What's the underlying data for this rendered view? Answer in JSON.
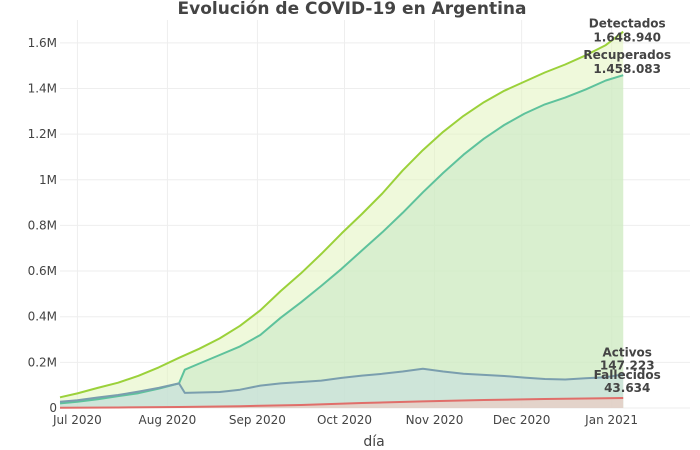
{
  "chart_data": {
    "type": "area",
    "title": "Evolución de COVID-19 en Argentina",
    "xlabel": "día",
    "ylabel": "",
    "x_start": "2020-06-25",
    "x_range": [
      "2020-06-25",
      "2021-01-28"
    ],
    "ylim": [
      0,
      1700000
    ],
    "grid": true,
    "y_ticks": [
      {
        "value": 0,
        "label": "0"
      },
      {
        "value": 200000,
        "label": "0.2M"
      },
      {
        "value": 400000,
        "label": "0.4M"
      },
      {
        "value": 600000,
        "label": "0.6M"
      },
      {
        "value": 800000,
        "label": "0.8M"
      },
      {
        "value": 1000000,
        "label": "1M"
      },
      {
        "value": 1200000,
        "label": "1.2M"
      },
      {
        "value": 1400000,
        "label": "1.4M"
      },
      {
        "value": 1600000,
        "label": "1.6M"
      }
    ],
    "x_ticks": [
      {
        "date": "2020-07-01",
        "label": "Jul 2020"
      },
      {
        "date": "2020-08-01",
        "label": "Aug 2020"
      },
      {
        "date": "2020-09-01",
        "label": "Sep 2020"
      },
      {
        "date": "2020-10-01",
        "label": "Oct 2020"
      },
      {
        "date": "2020-11-01",
        "label": "Nov 2020"
      },
      {
        "date": "2020-12-01",
        "label": "Dec 2020"
      },
      {
        "date": "2021-01-01",
        "label": "Jan 2021"
      }
    ],
    "series": [
      {
        "name": "Detectados",
        "label_value": "1.648.940",
        "color": "#9bd13a",
        "fill": "rgba(226,244,190,0.55)",
        "points": [
          [
            "2020-06-25",
            47000
          ],
          [
            "2020-07-01",
            64000
          ],
          [
            "2020-07-08",
            88000
          ],
          [
            "2020-07-15",
            111000
          ],
          [
            "2020-07-22",
            141000
          ],
          [
            "2020-07-29",
            178000
          ],
          [
            "2020-08-05",
            220000
          ],
          [
            "2020-08-12",
            260000
          ],
          [
            "2020-08-19",
            305000
          ],
          [
            "2020-08-26",
            360000
          ],
          [
            "2020-09-02",
            428000
          ],
          [
            "2020-09-09",
            512000
          ],
          [
            "2020-09-16",
            590000
          ],
          [
            "2020-09-23",
            675000
          ],
          [
            "2020-09-30",
            765000
          ],
          [
            "2020-10-07",
            850000
          ],
          [
            "2020-10-14",
            940000
          ],
          [
            "2020-10-21",
            1040000
          ],
          [
            "2020-10-28",
            1130000
          ],
          [
            "2020-11-04",
            1210000
          ],
          [
            "2020-11-11",
            1280000
          ],
          [
            "2020-11-18",
            1340000
          ],
          [
            "2020-11-25",
            1390000
          ],
          [
            "2020-12-02",
            1430000
          ],
          [
            "2020-12-09",
            1470000
          ],
          [
            "2020-12-16",
            1505000
          ],
          [
            "2020-12-23",
            1545000
          ],
          [
            "2020-12-30",
            1590000
          ],
          [
            "2021-01-05",
            1648940
          ]
        ]
      },
      {
        "name": "Recuperados",
        "label_value": "1.458.083",
        "color": "#5ec29c",
        "fill": "rgba(198,232,196,0.55)",
        "points": [
          [
            "2020-06-25",
            20000
          ],
          [
            "2020-07-01",
            27000
          ],
          [
            "2020-07-08",
            38000
          ],
          [
            "2020-07-15",
            52000
          ],
          [
            "2020-07-22",
            65000
          ],
          [
            "2020-07-29",
            85000
          ],
          [
            "2020-08-05",
            108000
          ],
          [
            "2020-08-07",
            168000
          ],
          [
            "2020-08-12",
            195000
          ],
          [
            "2020-08-19",
            232000
          ],
          [
            "2020-08-26",
            270000
          ],
          [
            "2020-09-02",
            320000
          ],
          [
            "2020-09-09",
            395000
          ],
          [
            "2020-09-16",
            463000
          ],
          [
            "2020-09-23",
            535000
          ],
          [
            "2020-09-30",
            610000
          ],
          [
            "2020-10-07",
            690000
          ],
          [
            "2020-10-14",
            770000
          ],
          [
            "2020-10-21",
            855000
          ],
          [
            "2020-10-28",
            945000
          ],
          [
            "2020-11-04",
            1030000
          ],
          [
            "2020-11-11",
            1110000
          ],
          [
            "2020-11-18",
            1180000
          ],
          [
            "2020-11-25",
            1240000
          ],
          [
            "2020-12-02",
            1290000
          ],
          [
            "2020-12-09",
            1330000
          ],
          [
            "2020-12-16",
            1360000
          ],
          [
            "2020-12-23",
            1395000
          ],
          [
            "2020-12-30",
            1435000
          ],
          [
            "2021-01-05",
            1458083
          ]
        ]
      },
      {
        "name": "Activos",
        "label_value": "147.223",
        "color": "#7a9eae",
        "fill": "rgba(196,220,226,0.55)",
        "points": [
          [
            "2020-06-25",
            27000
          ],
          [
            "2020-07-01",
            34000
          ],
          [
            "2020-07-08",
            46000
          ],
          [
            "2020-07-15",
            57000
          ],
          [
            "2020-07-22",
            72000
          ],
          [
            "2020-07-29",
            88000
          ],
          [
            "2020-08-05",
            108000
          ],
          [
            "2020-08-07",
            66000
          ],
          [
            "2020-08-12",
            68000
          ],
          [
            "2020-08-19",
            70000
          ],
          [
            "2020-08-26",
            80000
          ],
          [
            "2020-09-02",
            98000
          ],
          [
            "2020-09-09",
            108000
          ],
          [
            "2020-09-16",
            114000
          ],
          [
            "2020-09-23",
            120000
          ],
          [
            "2020-09-30",
            132000
          ],
          [
            "2020-10-07",
            142000
          ],
          [
            "2020-10-14",
            150000
          ],
          [
            "2020-10-21",
            160000
          ],
          [
            "2020-10-28",
            172000
          ],
          [
            "2020-11-04",
            160000
          ],
          [
            "2020-11-11",
            150000
          ],
          [
            "2020-11-18",
            145000
          ],
          [
            "2020-11-25",
            140000
          ],
          [
            "2020-12-02",
            133000
          ],
          [
            "2020-12-09",
            127000
          ],
          [
            "2020-12-16",
            125000
          ],
          [
            "2020-12-23",
            130000
          ],
          [
            "2020-12-30",
            135000
          ],
          [
            "2021-01-05",
            147223
          ]
        ]
      },
      {
        "name": "Fallecidos",
        "label_value": "43.634",
        "color": "#e06e6a",
        "fill": "rgba(244,196,190,0.55)",
        "points": [
          [
            "2020-06-25",
            1200
          ],
          [
            "2020-07-15",
            2200
          ],
          [
            "2020-08-05",
            4200
          ],
          [
            "2020-08-26",
            8000
          ],
          [
            "2020-09-16",
            13000
          ],
          [
            "2020-10-07",
            22000
          ],
          [
            "2020-10-28",
            29000
          ],
          [
            "2020-11-18",
            35000
          ],
          [
            "2020-12-09",
            39500
          ],
          [
            "2020-12-30",
            42700
          ],
          [
            "2021-01-05",
            43634
          ]
        ]
      }
    ]
  }
}
